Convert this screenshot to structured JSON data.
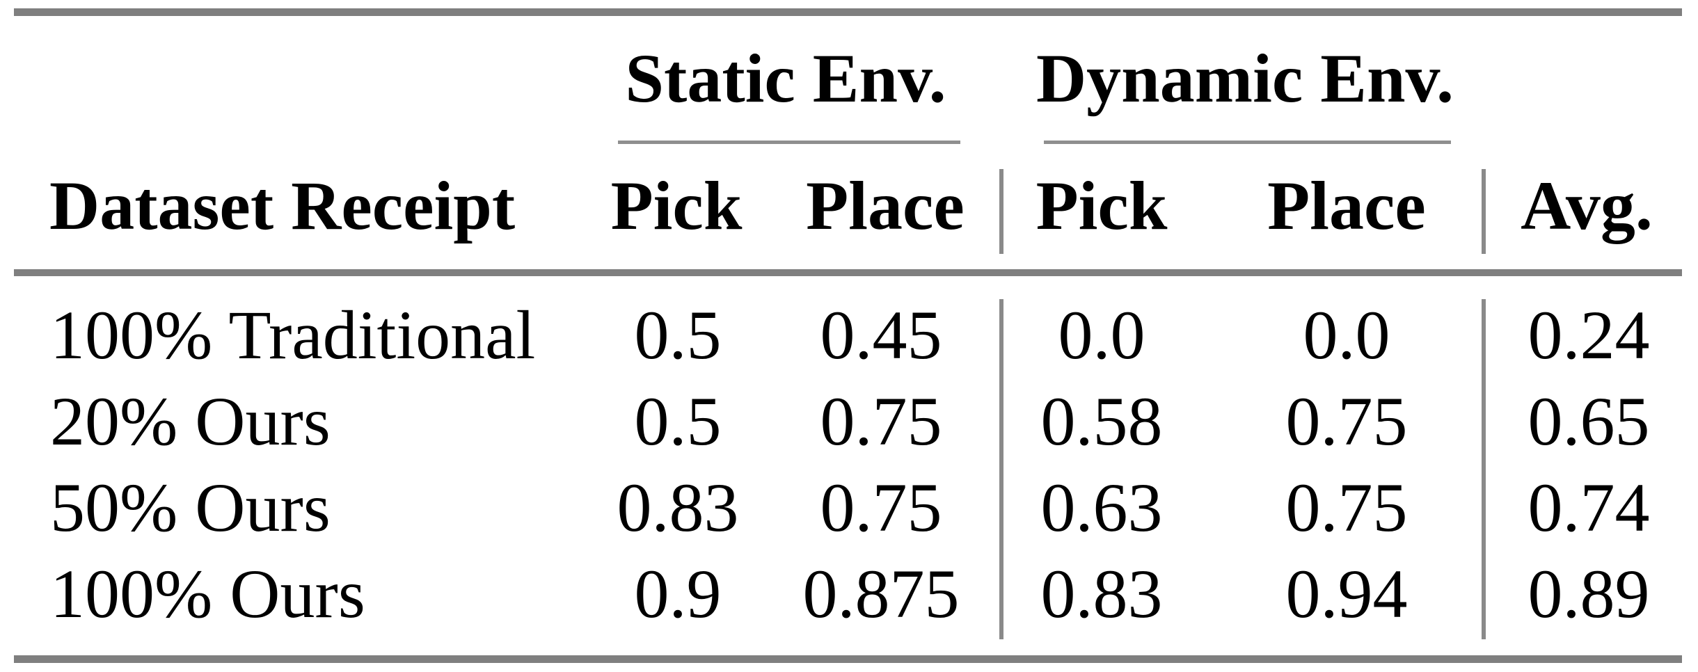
{
  "table": {
    "col_groups": [
      {
        "label": "Static Env."
      },
      {
        "label": "Dynamic Env."
      }
    ],
    "headers": {
      "dataset": "Dataset Receipt",
      "static_pick": "Pick",
      "static_place": "Place",
      "dynamic_pick": "Pick",
      "dynamic_place": "Place",
      "avg": "Avg."
    },
    "rows": [
      {
        "label": "100% Traditional",
        "static_pick": "0.5",
        "static_place": "0.45",
        "dynamic_pick": "0.0",
        "dynamic_place": "0.0",
        "avg": "0.24"
      },
      {
        "label": "20% Ours",
        "static_pick": "0.5",
        "static_place": "0.75",
        "dynamic_pick": "0.58",
        "dynamic_place": "0.75",
        "avg": "0.65"
      },
      {
        "label": "50% Ours",
        "static_pick": "0.83",
        "static_place": "0.75",
        "dynamic_pick": "0.63",
        "dynamic_place": "0.75",
        "avg": "0.74"
      },
      {
        "label": "100% Ours",
        "static_pick": "0.9",
        "static_place": "0.875",
        "dynamic_pick": "0.83",
        "dynamic_place": "0.94",
        "avg": "0.89"
      }
    ],
    "colors": {
      "rule_gray": "#7f7f7f",
      "thin_rule_gray": "#8f8f8f",
      "text": "#000000",
      "background": "#ffffff"
    }
  }
}
